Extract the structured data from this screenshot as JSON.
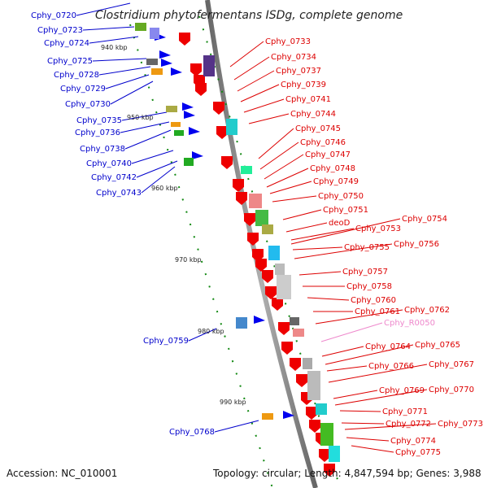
{
  "title": "Clostridium phytofermentans ISDg, complete genome",
  "accession": "Accession: NC_010001",
  "topology": "Topology: circular; Length: 4,847,594 bp; Genes: 3,988",
  "colors": {
    "backbone": "#888888",
    "forward_label": "#0000cc",
    "reverse_label": "#dd0000",
    "rna_label": "#ee88cc",
    "forward_arrow": "#0000ee",
    "reverse_arrow": "#ee0000"
  },
  "kbp_labels": [
    "940 kbp",
    "950 kbp",
    "960 kbp",
    "970 kbp",
    "980 kbp",
    "990 kbp"
  ],
  "forward_genes": [
    "Cphy_0720",
    "Cphy_0723",
    "Cphy_0724",
    "Cphy_0725",
    "Cphy_0728",
    "Cphy_0729",
    "Cphy_0730",
    "Cphy_0735",
    "Cphy_0736",
    "Cphy_0738",
    "Cphy_0740",
    "Cphy_0742",
    "Cphy_0743",
    "Cphy_0759",
    "Cphy_0768"
  ],
  "reverse_genes": [
    "Cphy_0733",
    "Cphy_0734",
    "Cphy_0737",
    "Cphy_0739",
    "Cphy_0741",
    "Cphy_0744",
    "Cphy_0745",
    "Cphy_0746",
    "Cphy_0747",
    "Cphy_0748",
    "Cphy_0749",
    "Cphy_0750",
    "Cphy_0751",
    "deoD",
    "Cphy_0753",
    "Cphy_0754",
    "Cphy_0755",
    "Cphy_0756",
    "Cphy_0757",
    "Cphy_0758",
    "Cphy_0760",
    "Cphy_0761",
    "Cphy_0762",
    "Cphy_R0050",
    "Cphy_0764",
    "Cphy_0765",
    "Cphy_0766",
    "Cphy_0767",
    "Cphy_0769",
    "Cphy_0770",
    "Cphy_0771",
    "Cphy_0772",
    "Cphy_0773",
    "Cphy_0774",
    "Cphy_0775"
  ]
}
